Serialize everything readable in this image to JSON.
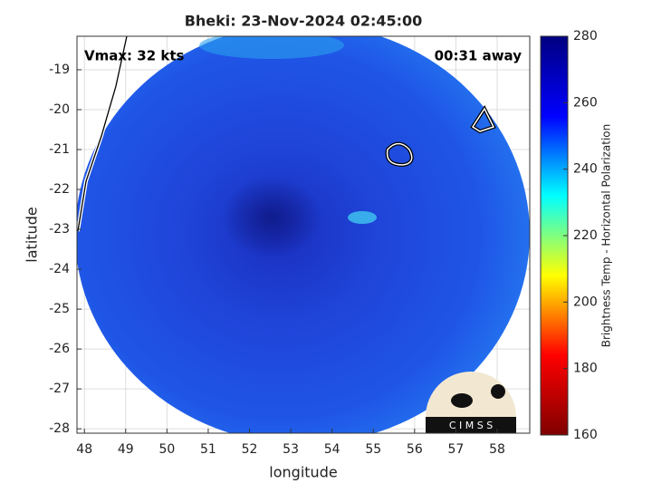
{
  "chart_data": {
    "type": "map",
    "title": "Bheki: 23-Nov-2024 02:45:00",
    "xlabel": "longitude",
    "ylabel": "latitude",
    "annotations": [
      "Vmax: 32 kts",
      "00:31 away"
    ],
    "logo_text": "C I M S S",
    "xlim": [
      47.82,
      58.79
    ],
    "xticks": [
      48,
      49,
      50,
      51,
      52,
      53,
      54,
      55,
      56,
      57,
      58
    ],
    "ylim": [
      -28.11,
      -18.16
    ],
    "yticks": [
      -19,
      -20,
      -21,
      -22,
      -23,
      -24,
      -25,
      -26,
      -27,
      -28
    ],
    "grid": true,
    "colorbar": {
      "label": "Brightness Temp - Horizontal Polarization",
      "lim": [
        160,
        280
      ],
      "ticks": [
        160,
        180,
        200,
        220,
        240,
        260,
        280
      ],
      "colormap": [
        "#7f0000",
        "#ff0000",
        "#ffff00",
        "#00ffff",
        "#0000ff",
        "#00007f"
      ]
    }
  }
}
